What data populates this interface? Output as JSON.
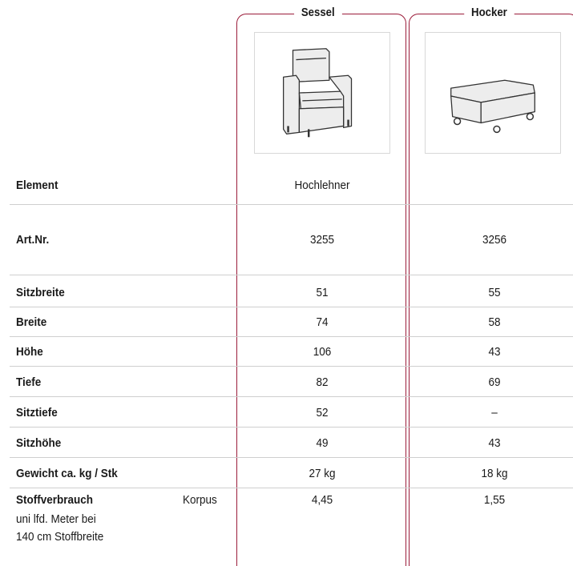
{
  "columns": {
    "sessel": {
      "title": "Sessel",
      "image": "recliner-armchair-drawing"
    },
    "hocker": {
      "title": "Hocker",
      "image": "ottoman-on-casters-drawing"
    }
  },
  "accent_color": "#9b1c3a",
  "rows": {
    "element": {
      "label": "Element",
      "sessel": "Hochlehner",
      "hocker": ""
    },
    "artnr": {
      "label": "Art.Nr.",
      "sessel": "3255",
      "hocker": "3256"
    },
    "sitzbreite": {
      "label": "Sitzbreite",
      "sessel": "51",
      "hocker": "55"
    },
    "breite": {
      "label": "Breite",
      "sessel": "74",
      "hocker": "58"
    },
    "hoehe": {
      "label": "Höhe",
      "sessel": "106",
      "hocker": "43"
    },
    "tiefe": {
      "label": "Tiefe",
      "sessel": "82",
      "hocker": "69"
    },
    "sitztiefe": {
      "label": "Sitztiefe",
      "sessel": "52",
      "hocker": "–"
    },
    "sitzhoehe": {
      "label": "Sitzhöhe",
      "sessel": "49",
      "hocker": "43"
    },
    "gewicht": {
      "label": "Gewicht ca. kg / Stk",
      "sessel": "27 kg",
      "hocker": "18 kg"
    },
    "stoff": {
      "label": "Stoffverbrauch",
      "sub1": "uni lfd. Meter bei",
      "sub2": "140 cm Stoffbreite",
      "korpus": "Korpus",
      "sessel": "4,45",
      "hocker": "1,55"
    }
  }
}
